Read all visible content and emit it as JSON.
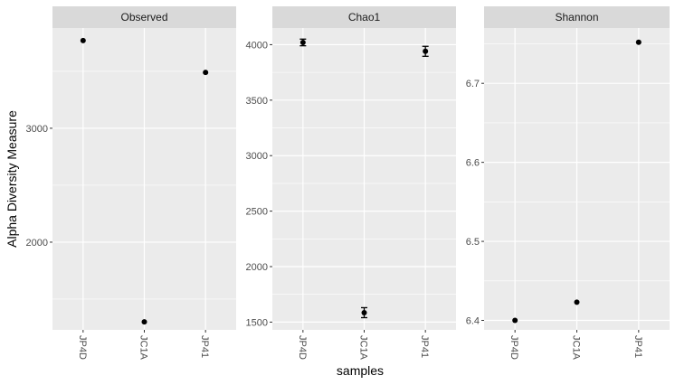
{
  "chart_data": {
    "type": "scatter",
    "xlabel": "samples",
    "ylabel": "Alpha Diversity Measure",
    "categories": [
      "JP4D",
      "JC1A",
      "JP41"
    ],
    "grid": true,
    "legend": "none",
    "colors": {
      "panel_bg": "#ebebeb",
      "strip_bg": "#d9d9d9",
      "grid": "#ffffff",
      "point": "#000000"
    },
    "panels": [
      {
        "title": "Observed",
        "ylim": [
          1230,
          3880
        ],
        "ymajor": [
          2000,
          3000
        ],
        "yminor": [
          1500,
          2500,
          3500
        ],
        "ticklabels": [
          "2000",
          "3000"
        ],
        "values": [
          3770,
          1300,
          3490
        ],
        "errors": [
          null,
          null,
          null
        ]
      },
      {
        "title": "Chao1",
        "ylim": [
          1430,
          4150
        ],
        "ymajor": [
          1500,
          2000,
          2500,
          3000,
          3500,
          4000
        ],
        "yminor": [
          1750,
          2250,
          2750,
          3250,
          3750
        ],
        "ticklabels": [
          "1500",
          "2000",
          "2500",
          "3000",
          "3500",
          "4000"
        ],
        "values": [
          4020,
          1585,
          3940
        ],
        "errors": [
          30,
          45,
          45
        ]
      },
      {
        "title": "Shannon",
        "ylim": [
          6.388,
          6.77
        ],
        "ymajor": [
          6.4,
          6.5,
          6.6,
          6.7
        ],
        "yminor": [
          6.45,
          6.55,
          6.65,
          6.75
        ],
        "ticklabels": [
          "6.4",
          "6.5",
          "6.6",
          "6.7"
        ],
        "values": [
          6.4,
          6.423,
          6.752
        ],
        "errors": [
          null,
          null,
          null
        ]
      }
    ]
  }
}
